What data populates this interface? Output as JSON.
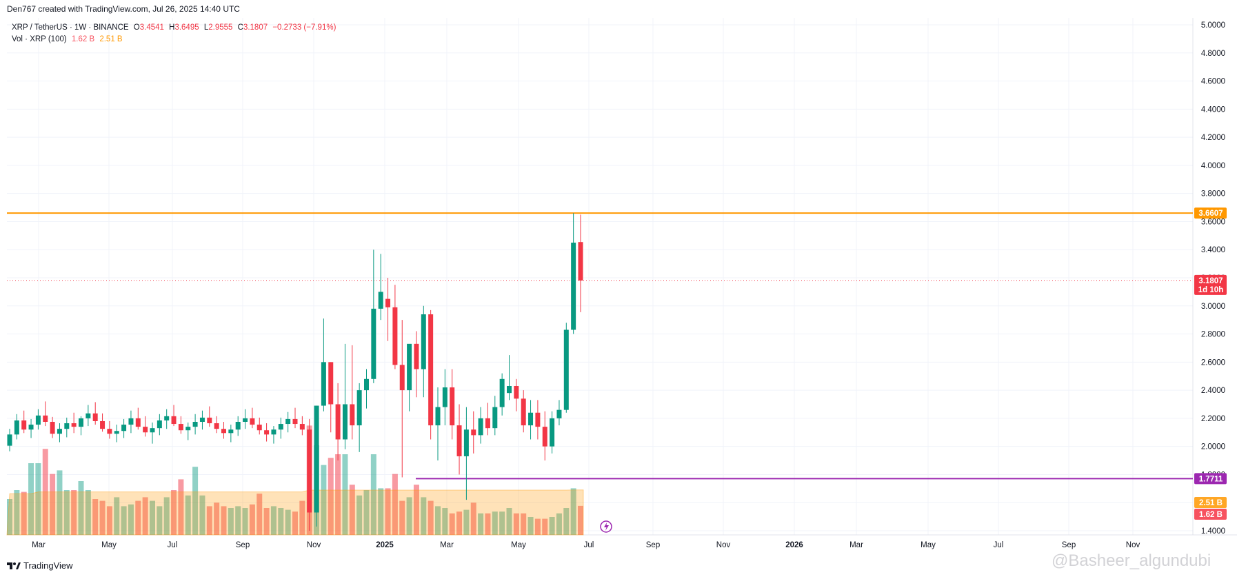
{
  "header": {
    "created": "Den767 created with TradingView.com, Jul 26, 2025 14:40 UTC"
  },
  "legend": {
    "symbol": "XRP / TetherUS · 1W · BINANCE",
    "o_label": "O",
    "o_value": "3.4541",
    "h_label": "H",
    "h_value": "3.6495",
    "l_label": "L",
    "l_value": "2.9555",
    "c_label": "C",
    "c_value": "3.1807",
    "change": "−0.2733 (−7.91%)",
    "vol_label": "Vol · XRP (100)",
    "vol_value1": "1.62 B",
    "vol_value2": "2.51 B"
  },
  "footer": {
    "brand": "TradingView",
    "watermark": "@Basheer_algundubi"
  },
  "colors": {
    "up": "#089981",
    "down": "#f23645",
    "resistance": "#ff9800",
    "support": "#9c27b0",
    "grid": "#f0f3fa"
  },
  "chart_data": {
    "type": "candlestick",
    "y_ticks": [
      "5.0000",
      "4.8000",
      "4.6000",
      "4.4000",
      "4.2000",
      "4.0000",
      "3.8000",
      "3.6000",
      "3.4000",
      "3.2000",
      "3.0000",
      "2.8000",
      "2.6000",
      "2.4000",
      "2.2000",
      "2.0000",
      "1.8000",
      "1.6000",
      "1.4000"
    ],
    "ylim": [
      1.4,
      5.0
    ],
    "x_ticks": [
      "Mar",
      "May",
      "Jul",
      "Sep",
      "Nov",
      "2025",
      "Mar",
      "May",
      "Jul",
      "Sep",
      "Nov",
      "2026",
      "Mar",
      "May",
      "Jul",
      "Sep",
      "Nov"
    ],
    "resistance": {
      "value": 3.6607,
      "label": "3.6607"
    },
    "support": {
      "value": 1.7711,
      "label": "1.7711"
    },
    "last_price": {
      "value": 3.1807,
      "label": "3.1807",
      "countdown": "1d 10h"
    },
    "volume_labels": {
      "ma": "2.51 B",
      "current": "1.62 B"
    },
    "candles": [
      {
        "o": 2.005,
        "h": 2.125,
        "l": 1.965,
        "c": 2.085
      },
      {
        "o": 2.085,
        "h": 2.23,
        "l": 2.05,
        "c": 2.185
      },
      {
        "o": 2.185,
        "h": 2.255,
        "l": 2.095,
        "c": 2.12
      },
      {
        "o": 2.12,
        "h": 2.195,
        "l": 2.06,
        "c": 2.155
      },
      {
        "o": 2.155,
        "h": 2.265,
        "l": 2.12,
        "c": 2.22
      },
      {
        "o": 2.22,
        "h": 2.32,
        "l": 2.145,
        "c": 2.175
      },
      {
        "o": 2.175,
        "h": 2.21,
        "l": 2.06,
        "c": 2.09
      },
      {
        "o": 2.09,
        "h": 2.165,
        "l": 2.03,
        "c": 2.125
      },
      {
        "o": 2.125,
        "h": 2.205,
        "l": 2.065,
        "c": 2.165
      },
      {
        "o": 2.165,
        "h": 2.24,
        "l": 2.095,
        "c": 2.14
      },
      {
        "o": 2.14,
        "h": 2.215,
        "l": 2.08,
        "c": 2.2
      },
      {
        "o": 2.2,
        "h": 2.295,
        "l": 2.145,
        "c": 2.235
      },
      {
        "o": 2.235,
        "h": 2.315,
        "l": 2.155,
        "c": 2.18
      },
      {
        "o": 2.18,
        "h": 2.235,
        "l": 2.105,
        "c": 2.125
      },
      {
        "o": 2.125,
        "h": 2.18,
        "l": 2.055,
        "c": 2.09
      },
      {
        "o": 2.09,
        "h": 2.155,
        "l": 2.03,
        "c": 2.11
      },
      {
        "o": 2.11,
        "h": 2.195,
        "l": 2.06,
        "c": 2.155
      },
      {
        "o": 2.155,
        "h": 2.255,
        "l": 2.095,
        "c": 2.2
      },
      {
        "o": 2.2,
        "h": 2.275,
        "l": 2.12,
        "c": 2.14
      },
      {
        "o": 2.14,
        "h": 2.215,
        "l": 2.07,
        "c": 2.1
      },
      {
        "o": 2.1,
        "h": 2.17,
        "l": 2.02,
        "c": 2.13
      },
      {
        "o": 2.13,
        "h": 2.23,
        "l": 2.08,
        "c": 2.185
      },
      {
        "o": 2.185,
        "h": 2.265,
        "l": 2.125,
        "c": 2.215
      },
      {
        "o": 2.215,
        "h": 2.295,
        "l": 2.145,
        "c": 2.16
      },
      {
        "o": 2.16,
        "h": 2.215,
        "l": 2.09,
        "c": 2.115
      },
      {
        "o": 2.115,
        "h": 2.17,
        "l": 2.045,
        "c": 2.14
      },
      {
        "o": 2.14,
        "h": 2.23,
        "l": 2.085,
        "c": 2.175
      },
      {
        "o": 2.175,
        "h": 2.255,
        "l": 2.12,
        "c": 2.205
      },
      {
        "o": 2.205,
        "h": 2.285,
        "l": 2.14,
        "c": 2.165
      },
      {
        "o": 2.165,
        "h": 2.215,
        "l": 2.095,
        "c": 2.125
      },
      {
        "o": 2.125,
        "h": 2.175,
        "l": 2.055,
        "c": 2.095
      },
      {
        "o": 2.095,
        "h": 2.155,
        "l": 2.03,
        "c": 2.12
      },
      {
        "o": 2.12,
        "h": 2.215,
        "l": 2.075,
        "c": 2.175
      },
      {
        "o": 2.175,
        "h": 2.265,
        "l": 2.125,
        "c": 2.2
      },
      {
        "o": 2.2,
        "h": 2.275,
        "l": 2.13,
        "c": 2.155
      },
      {
        "o": 2.155,
        "h": 2.205,
        "l": 2.085,
        "c": 2.115
      },
      {
        "o": 2.115,
        "h": 2.165,
        "l": 2.035,
        "c": 2.085
      },
      {
        "o": 2.085,
        "h": 2.145,
        "l": 2.02,
        "c": 2.12
      },
      {
        "o": 2.12,
        "h": 2.205,
        "l": 2.055,
        "c": 2.16
      },
      {
        "o": 2.16,
        "h": 2.245,
        "l": 2.1,
        "c": 2.195
      },
      {
        "o": 2.195,
        "h": 2.275,
        "l": 2.13,
        "c": 2.16
      },
      {
        "o": 2.16,
        "h": 2.215,
        "l": 2.08,
        "c": 2.12
      },
      {
        "o": 2.12,
        "h": 2.195,
        "l": 1.4,
        "c": 1.53
      },
      {
        "o": 1.53,
        "h": 2.29,
        "l": 1.43,
        "c": 2.29
      },
      {
        "o": 2.29,
        "h": 2.91,
        "l": 2.25,
        "c": 2.6
      },
      {
        "o": 2.6,
        "h": 2.6,
        "l": 2.1,
        "c": 2.3
      },
      {
        "o": 2.3,
        "h": 2.45,
        "l": 1.9,
        "c": 2.05
      },
      {
        "o": 2.05,
        "h": 2.73,
        "l": 1.98,
        "c": 2.3
      },
      {
        "o": 2.3,
        "h": 2.72,
        "l": 2.05,
        "c": 2.15
      },
      {
        "o": 2.15,
        "h": 2.45,
        "l": 1.96,
        "c": 2.4
      },
      {
        "o": 2.4,
        "h": 2.55,
        "l": 2.27,
        "c": 2.48
      },
      {
        "o": 2.48,
        "h": 3.4,
        "l": 2.45,
        "c": 2.98
      },
      {
        "o": 2.98,
        "h": 3.37,
        "l": 2.9,
        "c": 3.1
      },
      {
        "o": 3.05,
        "h": 3.2,
        "l": 2.75,
        "c": 2.99
      },
      {
        "o": 2.99,
        "h": 3.15,
        "l": 2.55,
        "c": 2.58
      },
      {
        "o": 2.58,
        "h": 2.9,
        "l": 1.78,
        "c": 2.4
      },
      {
        "o": 2.4,
        "h": 2.72,
        "l": 2.25,
        "c": 2.73
      },
      {
        "o": 2.73,
        "h": 2.82,
        "l": 2.35,
        "c": 2.55
      },
      {
        "o": 2.55,
        "h": 3.0,
        "l": 2.35,
        "c": 2.94
      },
      {
        "o": 2.94,
        "h": 2.97,
        "l": 2.05,
        "c": 2.15
      },
      {
        "o": 2.15,
        "h": 2.42,
        "l": 1.9,
        "c": 2.28
      },
      {
        "o": 2.28,
        "h": 2.55,
        "l": 2.15,
        "c": 2.42
      },
      {
        "o": 2.42,
        "h": 2.55,
        "l": 2.05,
        "c": 2.15
      },
      {
        "o": 2.15,
        "h": 2.3,
        "l": 1.8,
        "c": 1.93
      },
      {
        "o": 1.93,
        "h": 2.28,
        "l": 1.62,
        "c": 2.12
      },
      {
        "o": 2.12,
        "h": 2.25,
        "l": 1.95,
        "c": 2.08
      },
      {
        "o": 2.08,
        "h": 2.28,
        "l": 2.02,
        "c": 2.2
      },
      {
        "o": 2.2,
        "h": 2.31,
        "l": 2.08,
        "c": 2.13
      },
      {
        "o": 2.13,
        "h": 2.36,
        "l": 2.08,
        "c": 2.28
      },
      {
        "o": 2.28,
        "h": 2.52,
        "l": 2.22,
        "c": 2.48
      },
      {
        "o": 2.38,
        "h": 2.65,
        "l": 2.33,
        "c": 2.43
      },
      {
        "o": 2.43,
        "h": 2.48,
        "l": 2.25,
        "c": 2.34
      },
      {
        "o": 2.34,
        "h": 2.4,
        "l": 2.1,
        "c": 2.15
      },
      {
        "o": 2.15,
        "h": 2.33,
        "l": 2.05,
        "c": 2.24
      },
      {
        "o": 2.24,
        "h": 2.33,
        "l": 2.05,
        "c": 2.14
      },
      {
        "o": 2.14,
        "h": 2.25,
        "l": 1.9,
        "c": 2.0
      },
      {
        "o": 2.0,
        "h": 2.25,
        "l": 1.95,
        "c": 2.2
      },
      {
        "o": 2.2,
        "h": 2.33,
        "l": 2.15,
        "c": 2.26
      },
      {
        "o": 2.26,
        "h": 2.88,
        "l": 2.24,
        "c": 2.83
      },
      {
        "o": 2.83,
        "h": 3.66,
        "l": 2.8,
        "c": 3.45
      },
      {
        "o": 3.4541,
        "h": 3.6495,
        "l": 2.9555,
        "c": 3.1807
      }
    ],
    "volume": [
      2.0,
      2.5,
      2.4,
      4.0,
      4.0,
      4.8,
      3.4,
      3.6,
      2.5,
      2.5,
      3.0,
      2.5,
      2.0,
      1.9,
      1.6,
      2.1,
      1.6,
      1.7,
      1.9,
      2.1,
      1.9,
      1.6,
      2.1,
      2.5,
      3.1,
      2.2,
      3.8,
      2.2,
      1.6,
      1.8,
      1.6,
      1.5,
      1.6,
      1.5,
      1.7,
      2.3,
      1.5,
      1.6,
      1.5,
      1.4,
      1.3,
      1.9,
      6.1,
      5.0,
      3.9,
      4.3,
      4.5,
      4.5,
      2.8,
      2.2,
      2.5,
      4.5,
      2.6,
      2.6,
      3.4,
      1.9,
      2.1,
      2.8,
      2.1,
      1.9,
      1.6,
      1.5,
      1.2,
      1.3,
      1.4,
      1.8,
      1.2,
      1.2,
      1.3,
      1.3,
      1.5,
      1.2,
      1.2,
      1.0,
      0.9,
      0.9,
      1.0,
      1.2,
      1.5,
      2.6,
      1.62
    ],
    "volume_ma": [
      2.3,
      2.3,
      2.3,
      2.3,
      2.4,
      2.4,
      2.4,
      2.4,
      2.4,
      2.4,
      2.4,
      2.4,
      2.4,
      2.4,
      2.4,
      2.4,
      2.4,
      2.4,
      2.4,
      2.4,
      2.4,
      2.4,
      2.4,
      2.4,
      2.4,
      2.4,
      2.4,
      2.4,
      2.4,
      2.4,
      2.4,
      2.4,
      2.4,
      2.4,
      2.4,
      2.4,
      2.4,
      2.4,
      2.4,
      2.4,
      2.4,
      2.4,
      2.5,
      2.5,
      2.5,
      2.5,
      2.5,
      2.5,
      2.5,
      2.5,
      2.5,
      2.5,
      2.5,
      2.5,
      2.5,
      2.5,
      2.5,
      2.5,
      2.5,
      2.5,
      2.5,
      2.5,
      2.5,
      2.5,
      2.5,
      2.5,
      2.5,
      2.5,
      2.5,
      2.5,
      2.5,
      2.5,
      2.5,
      2.5,
      2.5,
      2.5,
      2.5,
      2.5,
      2.5,
      2.51,
      2.51
    ]
  }
}
